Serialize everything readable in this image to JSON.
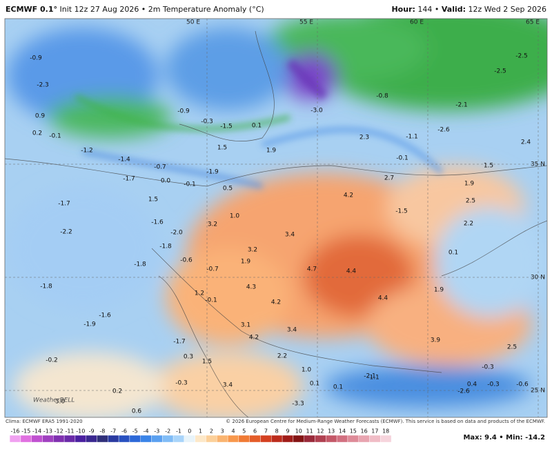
{
  "header": {
    "model": "ECMWF 0.1°",
    "info": "Init 12z 27 Aug 2026 • 2m Temperature Anomaly (°C)",
    "hour_label": "Hour:",
    "hour": "144 •",
    "valid_label": "Valid:",
    "valid": "12z Wed 2 Sep 2026"
  },
  "map": {
    "grid_labels": [
      "50 E",
      "55 E",
      "60 E",
      "65 E",
      "35 N",
      "30 N",
      "25 N"
    ],
    "watermark": "WeatherBELL",
    "values": [
      "-0.9",
      "-2.3",
      "0.9",
      "0.2",
      "-0.1",
      "-1.2",
      "-1.4",
      "-1.7",
      "-0.7",
      "0.0",
      "-0.1",
      "-1.9",
      "0.5",
      "1.5",
      "-0.9",
      "-0.3",
      "-1.5",
      "0.1",
      "1.9",
      "-3.0",
      "2.3",
      "-0.8",
      "-1.1",
      "-0.1",
      "2.7",
      "4.2",
      "-1.5",
      "-2.6",
      "-2.1",
      "-2.5",
      "-2.5",
      "2.4",
      "1.5",
      "1.9",
      "2.5",
      "2.2",
      "0.1",
      "1.9",
      "3.9",
      "2.5",
      "-0.3",
      "0.4",
      "-0.3",
      "-0.6",
      "-1.1",
      "4.4",
      "4.4",
      "4.7",
      "3.4",
      "3.2",
      "3.2",
      "1.0",
      "1.5",
      "-1.6",
      "-2.0",
      "-1.8",
      "-0.6",
      "-0.7",
      "1.9",
      "4.3",
      "4.2",
      "3.1",
      "3.4",
      "4.2",
      "2.2",
      "1.0",
      "0.1",
      "0.1",
      "-2.1",
      "-2.6",
      "1.2",
      "-0.1",
      "-1.8",
      "-1.8",
      "-1.9",
      "-1.6",
      "-1.7",
      "-0.2",
      "0.3",
      "1.5",
      "-0.3",
      "3.4",
      "0.2",
      "3.0",
      "0.6",
      "-3.3",
      "-1.7",
      "-2.2"
    ]
  },
  "footer": {
    "clima": "Clima: ECMWF ERA5 1991-2020",
    "copyright": "© 2026 European Centre for Medium-Range Weather Forecasts (ECMWF). This service is based on data and products of the ECMWF.",
    "maxmin": "Max: 9.4 • Min: -14.2"
  },
  "colorbar": {
    "ticks": [
      -16,
      -15,
      -14,
      -13,
      -12,
      -11,
      -10,
      -9,
      -8,
      -7,
      -6,
      -5,
      -4,
      -3,
      -2,
      -1,
      0,
      1,
      2,
      3,
      4,
      5,
      6,
      7,
      8,
      9,
      10,
      11,
      12,
      13,
      14,
      15,
      16,
      17,
      18
    ],
    "colors": [
      "#f0a0f0",
      "#e070e0",
      "#c050d0",
      "#a040c0",
      "#8030b0",
      "#6a2aa8",
      "#4a20a0",
      "#3a2890",
      "#30307a",
      "#2a3aa0",
      "#2850c0",
      "#2c68d8",
      "#3a84e8",
      "#5aa0f0",
      "#80bcf6",
      "#a8d4fa",
      "#e8f4fa",
      "#fde8c8",
      "#fcd09a",
      "#fab470",
      "#f8984c",
      "#f07a34",
      "#e45c28",
      "#d44020",
      "#bc2c1c",
      "#a01c18",
      "#841414",
      "#9a2a3a",
      "#b04050",
      "#c45868",
      "#d27080",
      "#de8a98",
      "#e8a4b0",
      "#f0bcc6",
      "#f6d4dc"
    ]
  }
}
